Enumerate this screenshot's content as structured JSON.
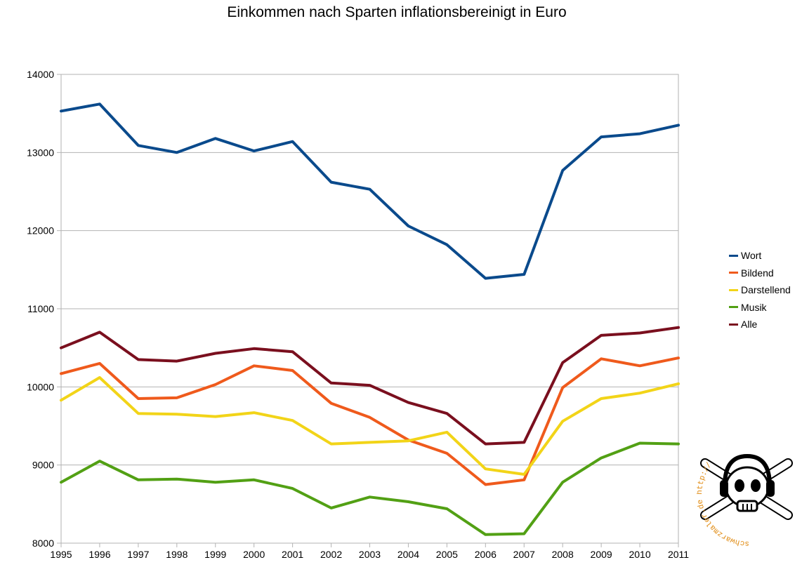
{
  "chart_data": {
    "type": "line",
    "title": "Einkommen nach Sparten inflationsbereinigt in Euro",
    "xlabel": "",
    "ylabel": "",
    "x": [
      1995,
      1996,
      1997,
      1998,
      1999,
      2000,
      2001,
      2002,
      2003,
      2004,
      2005,
      2006,
      2007,
      2008,
      2009,
      2010,
      2011
    ],
    "ylim": [
      8000,
      14000
    ],
    "yticks": [
      8000,
      9000,
      10000,
      11000,
      12000,
      13000,
      14000
    ],
    "grid": true,
    "legend_position": "right",
    "series": [
      {
        "name": "Wort",
        "color": "#0a4a8c",
        "values": [
          13530,
          13620,
          13090,
          13000,
          13180,
          13020,
          13140,
          12620,
          12530,
          12060,
          11820,
          11390,
          11440,
          12770,
          13200,
          13240,
          13350
        ]
      },
      {
        "name": "Bildend",
        "color": "#ef5a1c",
        "values": [
          10170,
          10300,
          9850,
          9860,
          10030,
          10270,
          10210,
          9790,
          9610,
          9320,
          9150,
          8750,
          8810,
          9990,
          10360,
          10270,
          10370
        ]
      },
      {
        "name": "Darstellend",
        "color": "#f2d418",
        "values": [
          9830,
          10120,
          9660,
          9650,
          9620,
          9670,
          9570,
          9270,
          9290,
          9310,
          9420,
          8950,
          8880,
          9560,
          9850,
          9920,
          10040
        ]
      },
      {
        "name": "Musik",
        "color": "#52a014",
        "values": [
          8780,
          9050,
          8810,
          8820,
          8780,
          8810,
          8700,
          8450,
          8590,
          8530,
          8440,
          8110,
          8120,
          8780,
          9090,
          9280,
          9270
        ]
      },
      {
        "name": "Alle",
        "color": "#7a0f1e",
        "values": [
          10500,
          10700,
          10350,
          10330,
          10430,
          10490,
          10450,
          10050,
          10020,
          9800,
          9660,
          9270,
          9290,
          10310,
          10660,
          10690,
          10760
        ]
      }
    ]
  },
  "watermark": {
    "text": "schwarzmaler.de  http://"
  }
}
